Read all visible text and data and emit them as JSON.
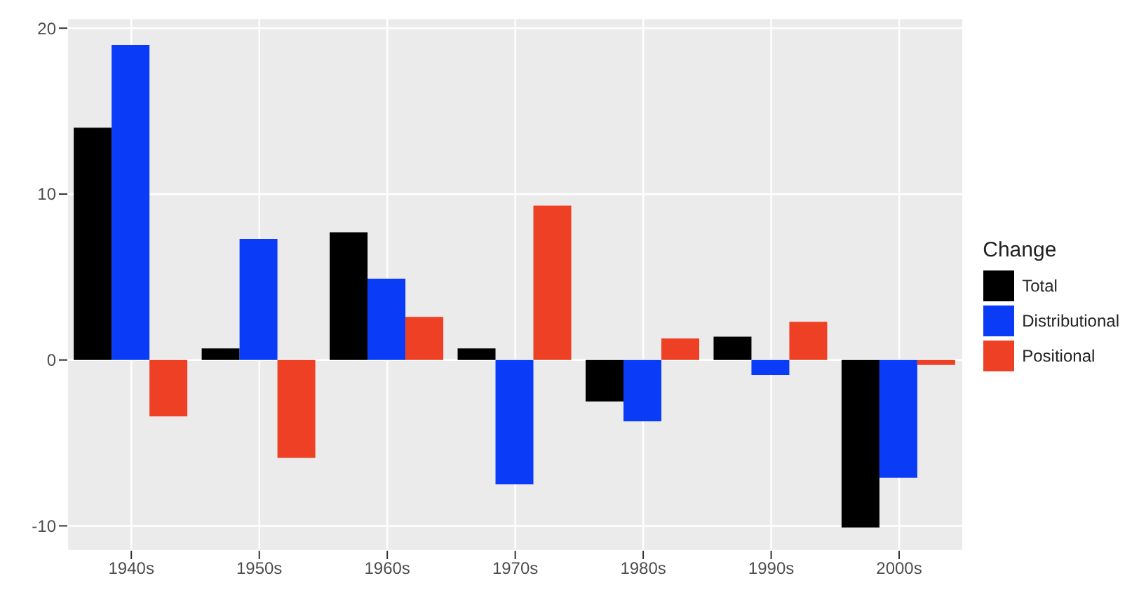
{
  "chart_data": {
    "type": "bar",
    "categories": [
      "1940s",
      "1950s",
      "1960s",
      "1970s",
      "1980s",
      "1990s",
      "2000s"
    ],
    "legend_title": "Change",
    "legend": "right",
    "grid": true,
    "ylim": [
      -11.5,
      20.6
    ],
    "yticks": [
      -10,
      0,
      10,
      20
    ],
    "series": [
      {
        "name": "Total",
        "color": "#000000",
        "values": [
          14.0,
          0.7,
          7.7,
          0.7,
          -2.5,
          1.4,
          -10.1
        ]
      },
      {
        "name": "Distributional",
        "color": "#0a3cf7",
        "values": [
          19.0,
          7.3,
          4.9,
          -7.5,
          -3.7,
          -0.9,
          -7.1
        ]
      },
      {
        "name": "Positional",
        "color": "#ee4024",
        "values": [
          -3.4,
          -5.9,
          2.6,
          9.3,
          1.3,
          2.3,
          -0.3
        ]
      }
    ]
  }
}
